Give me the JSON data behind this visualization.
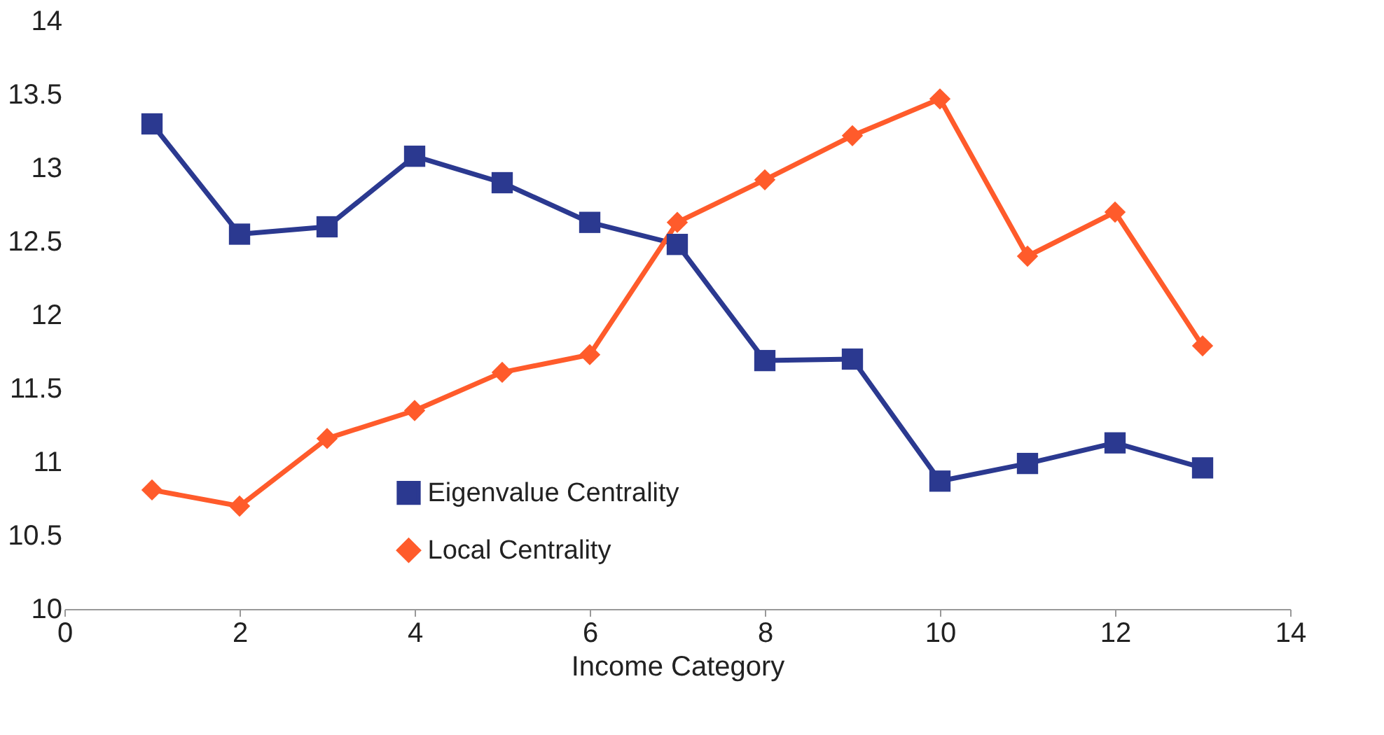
{
  "chart_data": {
    "type": "line",
    "xlabel": "Income Category",
    "x": [
      1,
      2,
      3,
      4,
      5,
      6,
      7,
      8,
      9,
      10,
      11,
      12,
      13
    ],
    "xlim": [
      0,
      14
    ],
    "xticks": [
      0,
      2,
      4,
      6,
      8,
      10,
      12,
      14
    ],
    "ylim": [
      10,
      14
    ],
    "yticks": [
      10,
      10.5,
      11,
      11.5,
      12,
      12.5,
      13,
      13.5,
      14
    ],
    "grid": false,
    "legend": "bottom",
    "line_style": "solid",
    "series": [
      {
        "name": "Eigenvalue Centrality",
        "color": "#2b3990",
        "marker": "square",
        "values": [
          13.3,
          12.55,
          12.6,
          13.08,
          12.9,
          12.63,
          12.48,
          11.69,
          11.7,
          10.87,
          10.99,
          11.13,
          10.96
        ]
      },
      {
        "name": "Local Centrality",
        "color": "#ff5b2b",
        "marker": "diamond",
        "values": [
          10.81,
          10.7,
          11.16,
          11.35,
          11.61,
          11.73,
          12.63,
          12.92,
          13.22,
          13.47,
          12.4,
          12.7,
          11.79
        ]
      }
    ]
  }
}
